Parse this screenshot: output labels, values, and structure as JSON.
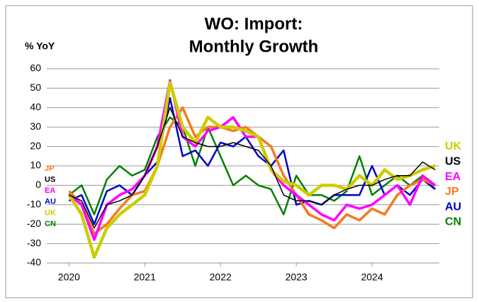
{
  "chart_data": {
    "type": "line",
    "title": [
      "WO: Import:",
      "Monthly Growth"
    ],
    "ylabel": "% YoY",
    "x": [
      2020,
      2020.1667,
      2020.3333,
      2020.5,
      2020.6667,
      2020.8333,
      2021,
      2021.1667,
      2021.3333,
      2021.5,
      2021.6667,
      2021.8333,
      2022,
      2022.1667,
      2022.3333,
      2022.5,
      2022.6667,
      2022.8333,
      2023,
      2023.1667,
      2023.3333,
      2023.5,
      2023.6667,
      2023.8333,
      2024,
      2024.1667,
      2024.3333,
      2024.5,
      2024.6667,
      2024.8333
    ],
    "xlim": [
      2019.8,
      2025.0
    ],
    "xticks": [
      2020,
      2021,
      2022,
      2023,
      2024
    ],
    "ylim": [
      -40,
      60
    ],
    "yticks": [
      -40,
      -30,
      -20,
      -10,
      0,
      10,
      20,
      30,
      40,
      50,
      60
    ],
    "grid": true,
    "series": [
      {
        "name": "UK",
        "color": "#cccc00",
        "values": [
          -5,
          -15,
          -37,
          -22,
          -15,
          -10,
          -5,
          10,
          53,
          30,
          22,
          35,
          30,
          30,
          28,
          25,
          8,
          2,
          0,
          -5,
          0,
          0,
          -2,
          5,
          0,
          8,
          3,
          5,
          8,
          10
        ]
      },
      {
        "name": "US",
        "color": "#000000",
        "values": [
          -5,
          -8,
          -22,
          -10,
          -8,
          -5,
          5,
          20,
          40,
          25,
          22,
          20,
          20,
          22,
          20,
          18,
          10,
          -5,
          -8,
          -8,
          -10,
          -5,
          -2,
          0,
          0,
          3,
          5,
          5,
          12,
          8
        ]
      },
      {
        "name": "EA",
        "color": "#ff00ff",
        "values": [
          -5,
          -10,
          -28,
          -10,
          -5,
          -2,
          5,
          20,
          54,
          25,
          20,
          28,
          30,
          35,
          25,
          25,
          8,
          0,
          -5,
          -10,
          -15,
          -18,
          -10,
          -12,
          -10,
          -5,
          0,
          -10,
          5,
          0
        ]
      },
      {
        "name": "JP",
        "color": "#f47a20",
        "values": [
          -3,
          -10,
          -25,
          -20,
          -12,
          -5,
          -3,
          10,
          30,
          40,
          25,
          30,
          30,
          28,
          30,
          25,
          20,
          5,
          -5,
          -15,
          -18,
          -22,
          -15,
          -18,
          -12,
          -15,
          -5,
          0,
          3,
          0
        ]
      },
      {
        "name": "AU",
        "color": "#0000cc",
        "values": [
          -8,
          -5,
          -20,
          -3,
          0,
          -5,
          5,
          12,
          45,
          15,
          18,
          10,
          22,
          20,
          25,
          15,
          10,
          18,
          -10,
          -8,
          -10,
          -5,
          -5,
          -5,
          10,
          -5,
          0,
          -5,
          3,
          -2
        ]
      },
      {
        "name": "CN",
        "color": "#008000",
        "values": [
          -5,
          0,
          -15,
          3,
          10,
          5,
          8,
          25,
          35,
          30,
          10,
          30,
          15,
          0,
          5,
          0,
          -2,
          -15,
          5,
          -5,
          -5,
          -8,
          -3,
          15,
          -5,
          0,
          5,
          0,
          5,
          -2
        ]
      }
    ]
  }
}
